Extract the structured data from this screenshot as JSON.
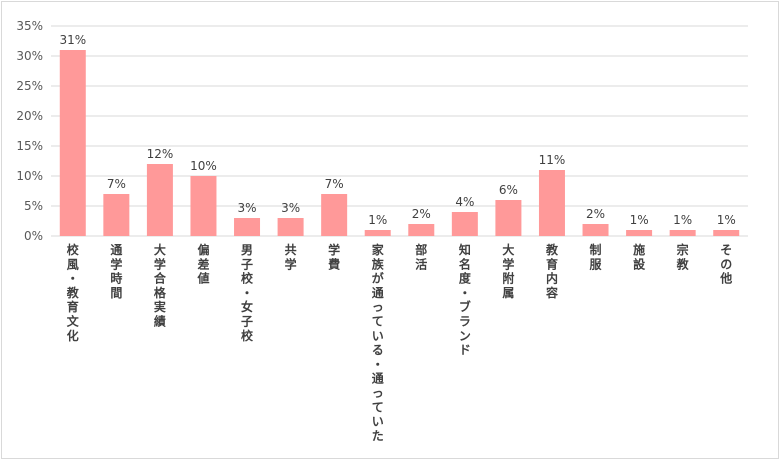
{
  "chart_data": {
    "type": "bar",
    "categories": [
      "校風・教育文化",
      "通学時間",
      "大学合格実績",
      "偏差値",
      "男子校・女子校",
      "共学",
      "学費",
      "家族が通っている・通っていた",
      "部活",
      "知名度・ブランド",
      "大学附属",
      "教育内容",
      "制服",
      "施設",
      "宗教",
      "その他"
    ],
    "values": [
      31,
      7,
      12,
      10,
      3,
      3,
      7,
      1,
      2,
      4,
      6,
      11,
      2,
      1,
      1,
      1
    ],
    "value_labels": [
      "31%",
      "7%",
      "12%",
      "10%",
      "3%",
      "3%",
      "7%",
      "1%",
      "2%",
      "4%",
      "6%",
      "11%",
      "2%",
      "1%",
      "1%",
      "1%"
    ],
    "y_ticks": [
      0,
      5,
      10,
      15,
      20,
      25,
      30,
      35
    ],
    "y_tick_labels": [
      "0%",
      "5%",
      "10%",
      "15%",
      "20%",
      "25%",
      "30%",
      "35%"
    ],
    "ylim": [
      0,
      35
    ],
    "grid": true,
    "legend": "none",
    "bar_color": "#ff9999",
    "grid_color": "#d9d9d9"
  }
}
